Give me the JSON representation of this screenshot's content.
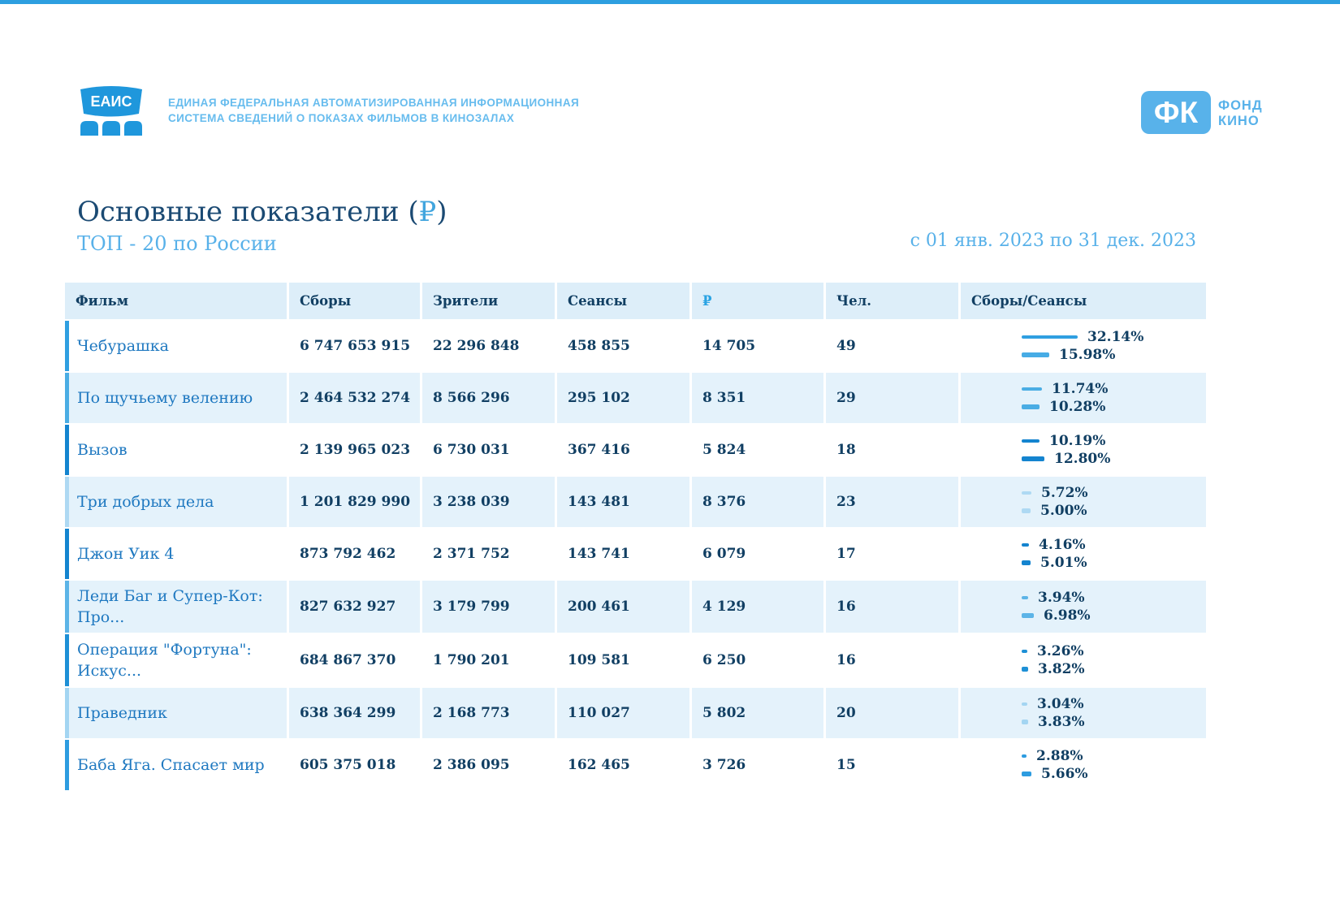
{
  "top_bar_color": "#2d9fe0",
  "header": {
    "eais_logo": "ЕАИС",
    "eais_line1": "ЕДИНАЯ ФЕДЕРАЛЬНАЯ АВТОМАТИЗИРОВАННАЯ ИНФОРМАЦИОННАЯ",
    "eais_line2": "СИСТЕМА СВЕДЕНИЙ О ПОКАЗАХ ФИЛЬМОВ В КИНОЗАЛАХ",
    "fk_logo": "ФК",
    "fk_line1": "ФОНД",
    "fk_line2": "КИНО"
  },
  "title": {
    "main": "Основные показатели ",
    "paren_open": "(",
    "currency": "₽",
    "paren_close": ")",
    "subtitle": "ТОП - 20 по России",
    "period": "с 01 янв. 2023 по 31 дек. 2023"
  },
  "colors": {
    "accent_blue": "#2d9fe0",
    "dark_text": "#113f63",
    "film_link": "#1e78c0",
    "light_blue_text": "#58b1e9",
    "header_bg": "#ddeef9",
    "row_alt_bg": "#e4f2fb"
  },
  "table": {
    "columns": [
      "Фильм",
      "Сборы",
      "Зрители",
      "Сеансы",
      "₽",
      "Чел.",
      "Сборы/Сеансы"
    ],
    "rows": [
      {
        "film": "Чебурашка",
        "fees": "6 747 653 915",
        "viewers": "22 296 848",
        "sessions": "458 855",
        "rub": "14 705",
        "people": "49",
        "share1_label": "32.14%",
        "share1_value": 32.14,
        "share2_label": "15.98%",
        "share2_value": 15.98,
        "color": "#2f9fe1",
        "color2": "#47ace5"
      },
      {
        "film": "По щучьему велению",
        "fees": "2 464 532 274",
        "viewers": "8 566 296",
        "sessions": "295 102",
        "rub": "8 351",
        "people": "29",
        "share1_label": "11.74%",
        "share1_value": 11.74,
        "share2_label": "10.28%",
        "share2_value": 10.28,
        "color": "#4aade4",
        "color2": "#4aade4"
      },
      {
        "film": "Вызов",
        "fees": "2 139 965 023",
        "viewers": "6 730 031",
        "sessions": "367 416",
        "rub": "5 824",
        "people": "18",
        "share1_label": "10.19%",
        "share1_value": 10.19,
        "share2_label": "12.80%",
        "share2_value": 12.8,
        "color": "#1484cf",
        "color2": "#1484cf"
      },
      {
        "film": "Три добрых дела",
        "fees": "1 201 829 990",
        "viewers": "3 238 039",
        "sessions": "143 481",
        "rub": "8 376",
        "people": "23",
        "share1_label": "5.72%",
        "share1_value": 5.72,
        "share2_label": "5.00%",
        "share2_value": 5.0,
        "color": "#aed9f3",
        "color2": "#aed9f3"
      },
      {
        "film": "Джон Уик 4",
        "fees": "873 792 462",
        "viewers": "2 371 752",
        "sessions": "143 741",
        "rub": "6 079",
        "people": "17",
        "share1_label": "4.16%",
        "share1_value": 4.16,
        "share2_label": "5.01%",
        "share2_value": 5.01,
        "color": "#1484cf",
        "color2": "#1484cf"
      },
      {
        "film": "Леди Баг и Супер-Кот: Про...",
        "fees": "827 632 927",
        "viewers": "3 179 799",
        "sessions": "200 461",
        "rub": "4 129",
        "people": "16",
        "share1_label": "3.94%",
        "share1_value": 3.94,
        "share2_label": "6.98%",
        "share2_value": 6.98,
        "color": "#5cb4e7",
        "color2": "#5cb4e7"
      },
      {
        "film": "Операция \"Фортуна\": Искус...",
        "fees": "684 867 370",
        "viewers": "1 790 201",
        "sessions": "109 581",
        "rub": "6 250",
        "people": "16",
        "share1_label": "3.26%",
        "share1_value": 3.26,
        "share2_label": "3.82%",
        "share2_value": 3.82,
        "color": "#1e90d6",
        "color2": "#1e90d6"
      },
      {
        "film": "Праведник",
        "fees": "638 364 299",
        "viewers": "2 168 773",
        "sessions": "110 027",
        "rub": "5 802",
        "people": "20",
        "share1_label": "3.04%",
        "share1_value": 3.04,
        "share2_label": "3.83%",
        "share2_value": 3.83,
        "color": "#a3d5f2",
        "color2": "#a3d5f2"
      },
      {
        "film": "Баба Яга. Спасает мир",
        "fees": "605 375 018",
        "viewers": "2 386 095",
        "sessions": "162 465",
        "rub": "3 726",
        "people": "15",
        "share1_label": "2.88%",
        "share1_value": 2.88,
        "share2_label": "5.66%",
        "share2_value": 5.66,
        "color": "#2d9ce0",
        "color2": "#2d9ce0"
      }
    ]
  }
}
